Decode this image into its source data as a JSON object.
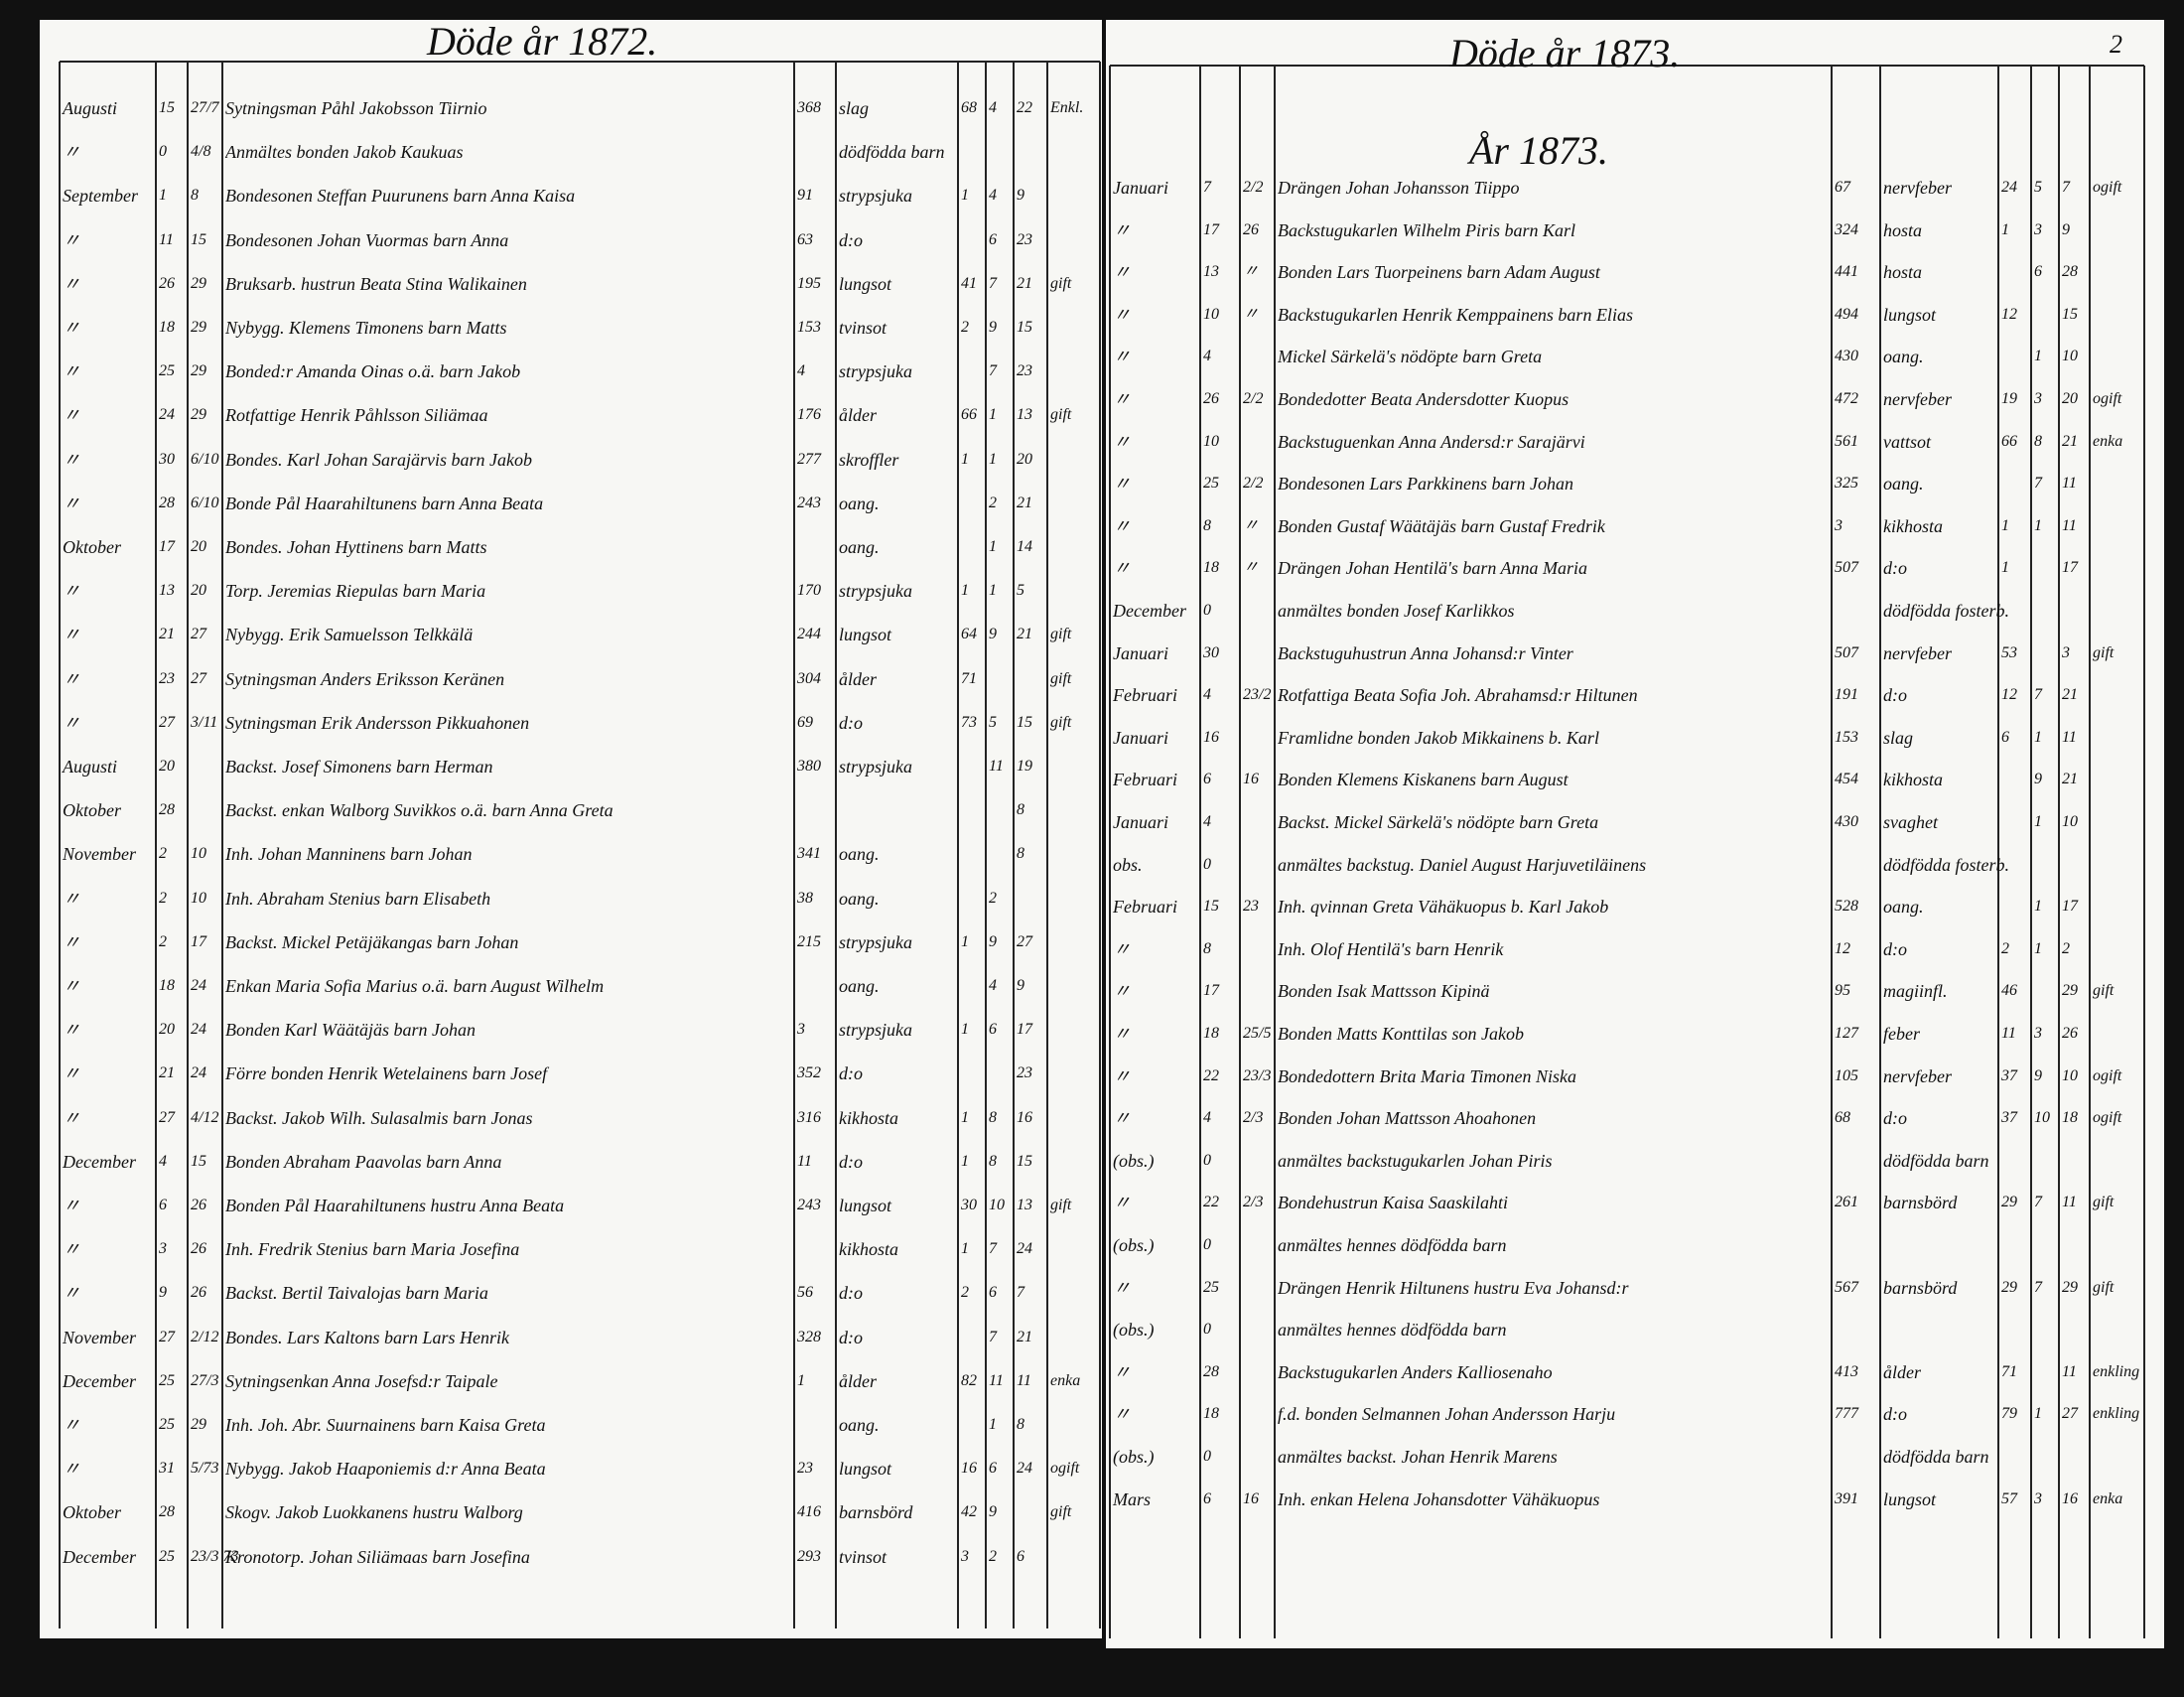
{
  "left_page": {
    "title": "Döde år 1872.",
    "rows": [
      {
        "month": "Augusti",
        "d1": "15",
        "d2": "27/7",
        "entry": "Sytningsman Påhl Jakobsson Tiirnio",
        "nr": "368",
        "cause": "slag",
        "y": "68",
        "m": "4",
        "d": "22",
        "st": "Enkl."
      },
      {
        "month": "〃",
        "d1": "0",
        "d2": "4/8",
        "entry": "Anmältes bonden Jakob Kaukuas",
        "cause": "dödfödda barn"
      },
      {
        "month": "September",
        "d1": "1",
        "d2": "8",
        "entry": "Bondesonen Steffan Puurunens barn Anna Kaisa",
        "nr": "91",
        "cause": "strypsjuka",
        "y": "1",
        "m": "4",
        "d": "9"
      },
      {
        "month": "〃",
        "d1": "11",
        "d2": "15",
        "entry": "Bondesonen Johan Vuormas barn Anna",
        "nr": "63",
        "cause": "d:o",
        "m": "6",
        "d": "23"
      },
      {
        "month": "〃",
        "d1": "26",
        "d2": "29",
        "entry": "Bruksarb. hustrun Beata Stina Walikainen",
        "nr": "195",
        "cause": "lungsot",
        "y": "41",
        "m": "7",
        "d": "21",
        "st": "gift"
      },
      {
        "month": "〃",
        "d1": "18",
        "d2": "29",
        "entry": "Nybygg. Klemens Timonens barn Matts",
        "nr": "153",
        "cause": "tvinsot",
        "y": "2",
        "m": "9",
        "d": "15"
      },
      {
        "month": "〃",
        "d1": "25",
        "d2": "29",
        "entry": "Bonded:r Amanda Oinas o.ä. barn Jakob",
        "nr": "4",
        "cause": "strypsjuka",
        "m": "7",
        "d": "23"
      },
      {
        "month": "〃",
        "d1": "24",
        "d2": "29",
        "entry": "Rotfattige Henrik Påhlsson Siliämaa",
        "nr": "176",
        "cause": "ålder",
        "y": "66",
        "m": "1",
        "d": "13",
        "st": "gift"
      },
      {
        "month": "〃",
        "d1": "30",
        "d2": "6/10",
        "entry": "Bondes. Karl Johan Sarajärvis barn Jakob",
        "nr": "277",
        "cause": "skroffler",
        "y": "1",
        "m": "1",
        "d": "20"
      },
      {
        "month": "〃",
        "d1": "28",
        "d2": "6/10",
        "entry": "Bonde Pål Haarahiltunens barn Anna Beata",
        "nr": "243",
        "cause": "oang.",
        "m": "2",
        "d": "21"
      },
      {
        "month": "Oktober",
        "d1": "17",
        "d2": "20",
        "entry": "Bondes. Johan Hyttinens barn Matts",
        "cause": "oang.",
        "m": "1",
        "d": "14"
      },
      {
        "month": "〃",
        "d1": "13",
        "d2": "20",
        "entry": "Torp. Jeremias Riepulas barn Maria",
        "nr": "170",
        "cause": "strypsjuka",
        "y": "1",
        "m": "1",
        "d": "5"
      },
      {
        "month": "〃",
        "d1": "21",
        "d2": "27",
        "entry": "Nybygg. Erik Samuelsson Telkkälä",
        "nr": "244",
        "cause": "lungsot",
        "y": "64",
        "m": "9",
        "d": "21",
        "st": "gift"
      },
      {
        "month": "〃",
        "d1": "23",
        "d2": "27",
        "entry": "Sytningsman Anders Eriksson Keränen",
        "nr": "304",
        "cause": "ålder",
        "y": "71",
        "st": "gift"
      },
      {
        "month": "〃",
        "d1": "27",
        "d2": "3/11",
        "entry": "Sytningsman Erik Andersson Pikkuahonen",
        "nr": "69",
        "cause": "d:o",
        "y": "73",
        "m": "5",
        "d": "15",
        "st": "gift"
      },
      {
        "month": "Augusti",
        "d1": "20",
        "entry": "Backst. Josef Simonens barn Herman",
        "nr": "380",
        "cause": "strypsjuka",
        "m": "11",
        "d": "19"
      },
      {
        "month": "Oktober",
        "d1": "28",
        "entry": "Backst. enkan Walborg Suvikkos o.ä. barn Anna Greta",
        "d": "8"
      },
      {
        "month": "November",
        "d1": "2",
        "d2": "10",
        "entry": "Inh. Johan Manninens barn Johan",
        "nr": "341",
        "cause": "oang.",
        "d": "8"
      },
      {
        "month": "〃",
        "d1": "2",
        "d2": "10",
        "entry": "Inh. Abraham Stenius barn Elisabeth",
        "nr": "38",
        "cause": "oang.",
        "m": "2"
      },
      {
        "month": "〃",
        "d1": "2",
        "d2": "17",
        "entry": "Backst. Mickel Petäjäkangas barn Johan",
        "nr": "215",
        "cause": "strypsjuka",
        "y": "1",
        "m": "9",
        "d": "27"
      },
      {
        "month": "〃",
        "d1": "18",
        "d2": "24",
        "entry": "Enkan Maria Sofia Marius o.ä. barn August Wilhelm",
        "cause": "oang.",
        "m": "4",
        "d": "9"
      },
      {
        "month": "〃",
        "d1": "20",
        "d2": "24",
        "entry": "Bonden Karl Wäätäjäs barn Johan",
        "nr": "3",
        "cause": "strypsjuka",
        "y": "1",
        "m": "6",
        "d": "17"
      },
      {
        "month": "〃",
        "d1": "21",
        "d2": "24",
        "entry": "Förre bonden Henrik Wetelainens barn Josef",
        "nr": "352",
        "cause": "d:o",
        "d": "23"
      },
      {
        "month": "〃",
        "d1": "27",
        "d2": "4/12",
        "entry": "Backst. Jakob Wilh. Sulasalmis barn Jonas",
        "nr": "316",
        "cause": "kikhosta",
        "y": "1",
        "m": "8",
        "d": "16"
      },
      {
        "month": "December",
        "d1": "4",
        "d2": "15",
        "entry": "Bonden Abraham Paavolas barn Anna",
        "nr": "11",
        "cause": "d:o",
        "y": "1",
        "m": "8",
        "d": "15"
      },
      {
        "month": "〃",
        "d1": "6",
        "d2": "26",
        "entry": "Bonden Pål Haarahiltunens hustru Anna Beata",
        "nr": "243",
        "cause": "lungsot",
        "y": "30",
        "m": "10",
        "d": "13",
        "st": "gift"
      },
      {
        "month": "〃",
        "d1": "3",
        "d2": "26",
        "entry": "Inh. Fredrik Stenius barn Maria Josefina",
        "cause": "kikhosta",
        "y": "1",
        "m": "7",
        "d": "24"
      },
      {
        "month": "〃",
        "d1": "9",
        "d2": "26",
        "entry": "Backst. Bertil Taivalojas barn Maria",
        "nr": "56",
        "cause": "d:o",
        "y": "2",
        "m": "6",
        "d": "7"
      },
      {
        "month": "November",
        "d1": "27",
        "d2": "2/12",
        "entry": "Bondes. Lars Kaltons barn Lars Henrik",
        "nr": "328",
        "cause": "d:o",
        "m": "7",
        "d": "21"
      },
      {
        "month": "December",
        "d1": "25",
        "d2": "27/3",
        "entry": "Sytningsenkan Anna Josefsd:r Taipale",
        "nr": "1",
        "cause": "ålder",
        "y": "82",
        "m": "11",
        "d": "11",
        "st": "enka"
      },
      {
        "month": "〃",
        "d1": "25",
        "d2": "29",
        "entry": "Inh. Joh. Abr. Suurnainens barn Kaisa Greta",
        "cause": "oang.",
        "m": "1",
        "d": "8"
      },
      {
        "month": "〃",
        "d1": "31",
        "d2": "5/73",
        "entry": "Nybygg. Jakob Haaponiemis d:r Anna Beata",
        "nr": "23",
        "cause": "lungsot",
        "y": "16",
        "m": "6",
        "d": "24",
        "st": "ogift"
      },
      {
        "month": "Oktober",
        "d1": "28",
        "entry": "Skogv. Jakob Luokkanens hustru Walborg",
        "nr": "416",
        "cause": "barnsbörd",
        "y": "42",
        "m": "9",
        "st": "gift"
      },
      {
        "month": "December",
        "d1": "25",
        "d2": "23/3 73",
        "entry": "Kronotorp. Johan Siliämaas barn Josefina",
        "nr": "293",
        "cause": "tvinsot",
        "y": "3",
        "m": "2",
        "d": "6"
      }
    ]
  },
  "right_page": {
    "title": "Döde år 1873.",
    "page_number": "2",
    "subtitle": "År 1873.",
    "rows": [
      {
        "month": "Januari",
        "d1": "7",
        "d2": "2/2",
        "entry": "Drängen Johan Johansson Tiippo",
        "nr": "67",
        "cause": "nervfeber",
        "y": "24",
        "m": "5",
        "d": "7",
        "st": "ogift"
      },
      {
        "month": "〃",
        "d1": "17",
        "d2": "26",
        "entry": "Backstugukarlen Wilhelm Piris barn Karl",
        "nr": "324",
        "cause": "hosta",
        "y": "1",
        "m": "3",
        "d": "9"
      },
      {
        "month": "〃",
        "d1": "13",
        "d2": "〃",
        "entry": "Bonden Lars Tuorpeinens barn Adam August",
        "nr": "441",
        "cause": "hosta",
        "m": "6",
        "d": "28"
      },
      {
        "month": "〃",
        "d1": "10",
        "d2": "〃",
        "entry": "Backstugukarlen Henrik Kemppainens barn Elias",
        "nr": "494",
        "cause": "lungsot",
        "y": "12",
        "d": "15"
      },
      {
        "month": "〃",
        "d1": "4",
        "entry": "Mickel Särkelä's nödöpte barn Greta",
        "nr": "430",
        "cause": "oang.",
        "m": "1",
        "d": "10"
      },
      {
        "month": "〃",
        "d1": "26",
        "d2": "2/2",
        "entry": "Bondedotter Beata Andersdotter Kuopus",
        "nr": "472",
        "cause": "nervfeber",
        "y": "19",
        "m": "3",
        "d": "20",
        "st": "ogift"
      },
      {
        "month": "〃",
        "d1": "10",
        "entry": "Backstuguenkan Anna Andersd:r Sarajärvi",
        "nr": "561",
        "cause": "vattsot",
        "y": "66",
        "m": "8",
        "d": "21",
        "st": "enka"
      },
      {
        "month": "〃",
        "d1": "25",
        "d2": "2/2",
        "entry": "Bondesonen Lars Parkkinens barn Johan",
        "nr": "325",
        "cause": "oang.",
        "m": "7",
        "d": "11"
      },
      {
        "month": "〃",
        "d1": "8",
        "d2": "〃",
        "entry": "Bonden Gustaf Wäätäjäs barn Gustaf Fredrik",
        "nr": "3",
        "cause": "kikhosta",
        "y": "1",
        "m": "1",
        "d": "11"
      },
      {
        "month": "〃",
        "d1": "18",
        "d2": "〃",
        "entry": "Drängen Johan Hentilä's barn Anna Maria",
        "nr": "507",
        "cause": "d:o",
        "y": "1",
        "d": "17"
      },
      {
        "month": "December",
        "d1": "0",
        "entry": "anmältes bonden Josef Karlikkos",
        "cause": "dödfödda fosterb."
      },
      {
        "month": "Januari",
        "d1": "30",
        "entry": "Backstuguhustrun Anna Johansd:r Vinter",
        "nr": "507",
        "cause": "nervfeber",
        "y": "53",
        "d": "3",
        "st": "gift"
      },
      {
        "month": "Februari",
        "d1": "4",
        "d2": "23/2",
        "entry": "Rotfattiga Beata Sofia Joh. Abrahamsd:r Hiltunen",
        "nr": "191",
        "cause": "d:o",
        "y": "12",
        "m": "7",
        "d": "21"
      },
      {
        "month": "Januari",
        "d1": "16",
        "entry": "Framlidne bonden Jakob Mikkainens b. Karl",
        "nr": "153",
        "cause": "slag",
        "y": "6",
        "m": "1",
        "d": "11"
      },
      {
        "month": "Februari",
        "d1": "6",
        "d2": "16",
        "entry": "Bonden Klemens Kiskanens barn August",
        "nr": "454",
        "cause": "kikhosta",
        "m": "9",
        "d": "21"
      },
      {
        "month": "Januari",
        "d1": "4",
        "entry": "Backst. Mickel Särkelä's nödöpte barn Greta",
        "nr": "430",
        "cause": "svaghet",
        "m": "1",
        "d": "10"
      },
      {
        "month": "obs.",
        "d1": "0",
        "entry": "anmältes backstug. Daniel August Harjuvetiläinens",
        "cause": "dödfödda fosterb."
      },
      {
        "month": "Februari",
        "d1": "15",
        "d2": "23",
        "entry": "Inh. qvinnan Greta Vähäkuopus b. Karl Jakob",
        "nr": "528",
        "cause": "oang.",
        "m": "1",
        "d": "17"
      },
      {
        "month": "〃",
        "d1": "8",
        "entry": "Inh. Olof Hentilä's barn Henrik",
        "nr": "12",
        "cause": "d:o",
        "y": "2",
        "m": "1",
        "d": "2"
      },
      {
        "month": "〃",
        "d1": "17",
        "entry": "Bonden Isak Mattsson Kipinä",
        "nr": "95",
        "cause": "magiinfl.",
        "y": "46",
        "d": "29",
        "st": "gift"
      },
      {
        "month": "〃",
        "d1": "18",
        "d2": "25/5",
        "entry": "Bonden Matts Konttilas son Jakob",
        "nr": "127",
        "cause": "feber",
        "y": "11",
        "m": "3",
        "d": "26"
      },
      {
        "month": "〃",
        "d1": "22",
        "d2": "23/3",
        "entry": "Bondedottern Brita Maria Timonen Niska",
        "nr": "105",
        "cause": "nervfeber",
        "y": "37",
        "m": "9",
        "d": "10",
        "st": "ogift"
      },
      {
        "month": "〃",
        "d1": "4",
        "d2": "2/3",
        "entry": "Bonden Johan Mattsson Ahoahonen",
        "nr": "68",
        "cause": "d:o",
        "y": "37",
        "m": "10",
        "d": "18",
        "st": "ogift"
      },
      {
        "month": "(obs.)",
        "d1": "0",
        "entry": "anmältes backstugukarlen Johan Piris",
        "cause": "dödfödda barn"
      },
      {
        "month": "〃",
        "d1": "22",
        "d2": "2/3",
        "entry": "Bondehustrun Kaisa Saaskilahti",
        "nr": "261",
        "cause": "barnsbörd",
        "y": "29",
        "m": "7",
        "d": "11",
        "st": "gift"
      },
      {
        "month": "(obs.)",
        "d1": "0",
        "entry": "anmältes hennes dödfödda barn"
      },
      {
        "month": "〃",
        "d1": "25",
        "entry": "Drängen Henrik Hiltunens hustru Eva Johansd:r",
        "nr": "567",
        "cause": "barnsbörd",
        "y": "29",
        "m": "7",
        "d": "29",
        "st": "gift"
      },
      {
        "month": "(obs.)",
        "d1": "0",
        "entry": "anmältes hennes dödfödda barn"
      },
      {
        "month": "〃",
        "d1": "28",
        "entry": "Backstugukarlen Anders Kalliosenaho",
        "nr": "413",
        "cause": "ålder",
        "y": "71",
        "d": "11",
        "st": "enkling"
      },
      {
        "month": "〃",
        "d1": "18",
        "entry": "f.d. bonden Selmannen Johan Andersson Harju",
        "nr": "777",
        "cause": "d:o",
        "y": "79",
        "m": "1",
        "d": "27",
        "st": "enkling"
      },
      {
        "month": "(obs.)",
        "d1": "0",
        "entry": "anmältes backst. Johan Henrik Marens",
        "cause": "dödfödda barn"
      },
      {
        "month": "Mars",
        "d1": "6",
        "d2": "16",
        "entry": "Inh. enkan Helena Johansdotter Vähäkuopus",
        "nr": "391",
        "cause": "lungsot",
        "y": "57",
        "m": "3",
        "d": "16",
        "st": "enka"
      }
    ]
  }
}
